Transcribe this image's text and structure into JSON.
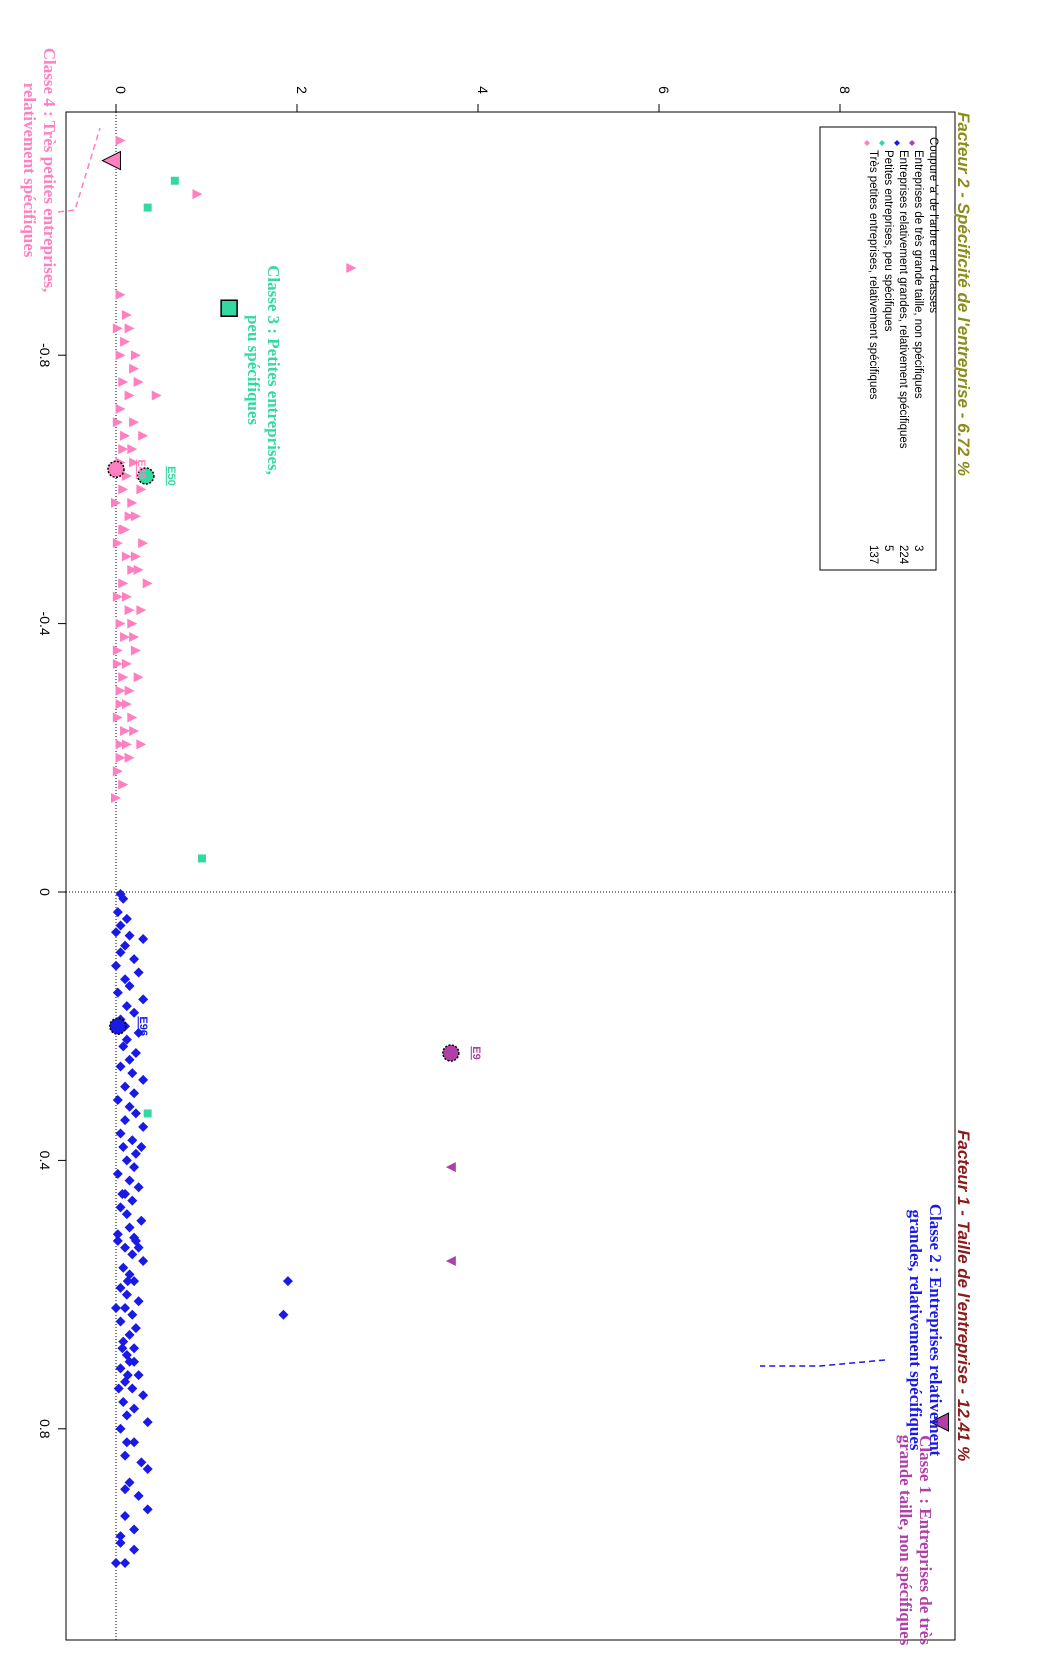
{
  "chart_data": {
    "type": "scatter",
    "rotation": "90deg clockwise",
    "xlabel": "Facteur 1 - Taille de l'entreprise  -  12.41 %",
    "ylabel": "Facteur 2 - Spécificité de l'entreprise  -  6.72 %",
    "xlim": [
      -1.12,
      1.02
    ],
    "ylim": [
      -0.3,
      9.0
    ],
    "x_ticks": [
      -0.8,
      -0.4,
      0,
      0.4,
      0.8
    ],
    "x_tick_labels": [
      "-0.8",
      "-0.4",
      "0",
      "0.4",
      "0.8"
    ],
    "y_ticks": [
      0,
      2,
      4,
      6,
      8
    ],
    "y_tick_labels": [
      "0",
      "2",
      "4",
      "6",
      "8"
    ],
    "reference_lines": {
      "x": 0,
      "y": 0
    },
    "colors": {
      "class1": "#b040a8",
      "class2": "#1a1ae6",
      "class3": "#33d9a0",
      "class4": "#ff80c0",
      "xlabel": "#8b1a1a",
      "ylabel": "#8c8c1a"
    },
    "legend": {
      "title": "Coupure 'a' de l'arbre en 4 classes",
      "items": [
        {
          "label": "Entreprises de très grande taille, non spécifiques",
          "count": "3"
        },
        {
          "label": "Entreprises relativement grandes, relativement spécifiques",
          "count": "224"
        },
        {
          "label": "Petites entreprises, peu spécifiques",
          "count": "5"
        },
        {
          "label": "Très petites entreprises, relativement spécifiques",
          "count": "137"
        }
      ]
    },
    "class_labels": {
      "class1": [
        "Classe 1 : Entreprises de très",
        "grande taille, non spécifiques"
      ],
      "class2": [
        "Classe 2 : Entreprises relativement",
        "grandes, relativement spécifiques"
      ],
      "class3": [
        "Classe 3 : Petites entreprises,",
        "peu spécifiques"
      ],
      "class4": [
        "Classe 4 : Très petites entreprises,",
        "relativement spécifiques"
      ]
    },
    "series": [
      {
        "name": "Entreprises de très grande taille, non spécifiques",
        "marker": "triangle",
        "points": [
          [
            0.41,
            3.7
          ],
          [
            0.55,
            3.7
          ],
          [
            0.79,
            9.1
          ]
        ]
      },
      {
        "name": "Entreprises relativement grandes, relativement spécifiques",
        "marker": "diamond",
        "points": [
          [
            0.003,
            0.05
          ],
          [
            0.01,
            0.08
          ],
          [
            0.03,
            0.02
          ],
          [
            0.04,
            0.12
          ],
          [
            0.05,
            0.05
          ],
          [
            0.06,
            0.0
          ],
          [
            0.065,
            0.15
          ],
          [
            0.07,
            0.3
          ],
          [
            0.08,
            0.1
          ],
          [
            0.09,
            0.05
          ],
          [
            0.1,
            0.2
          ],
          [
            0.11,
            0.0
          ],
          [
            0.12,
            0.25
          ],
          [
            0.13,
            0.1
          ],
          [
            0.14,
            0.15
          ],
          [
            0.15,
            0.02
          ],
          [
            0.16,
            0.3
          ],
          [
            0.17,
            0.12
          ],
          [
            0.18,
            0.2
          ],
          [
            0.19,
            0.05
          ],
          [
            0.2,
            0.1
          ],
          [
            0.21,
            0.25
          ],
          [
            0.22,
            0.12
          ],
          [
            0.23,
            0.08
          ],
          [
            0.24,
            0.22
          ],
          [
            0.25,
            0.15
          ],
          [
            0.26,
            0.05
          ],
          [
            0.27,
            0.18
          ],
          [
            0.28,
            0.3
          ],
          [
            0.29,
            0.1
          ],
          [
            0.3,
            0.2
          ],
          [
            0.31,
            0.02
          ],
          [
            0.32,
            0.15
          ],
          [
            0.33,
            0.22
          ],
          [
            0.34,
            0.1
          ],
          [
            0.35,
            0.3
          ],
          [
            0.36,
            0.05
          ],
          [
            0.37,
            0.18
          ],
          [
            0.38,
            0.08
          ],
          [
            0.39,
            0.22
          ],
          [
            0.4,
            0.12
          ],
          [
            0.41,
            0.2
          ],
          [
            0.42,
            0.02
          ],
          [
            0.43,
            0.15
          ],
          [
            0.44,
            0.25
          ],
          [
            0.45,
            0.1
          ],
          [
            0.46,
            0.18
          ],
          [
            0.47,
            0.05
          ],
          [
            0.48,
            0.12
          ],
          [
            0.49,
            0.28
          ],
          [
            0.5,
            0.15
          ],
          [
            0.51,
            0.02
          ],
          [
            0.52,
            0.22
          ],
          [
            0.53,
            0.1
          ],
          [
            0.54,
            0.18
          ],
          [
            0.55,
            0.3
          ],
          [
            0.56,
            0.08
          ],
          [
            0.57,
            0.15
          ],
          [
            0.58,
            0.2
          ],
          [
            0.59,
            0.05
          ],
          [
            0.6,
            0.12
          ],
          [
            0.61,
            0.25
          ],
          [
            0.62,
            0.1
          ],
          [
            0.63,
            0.18
          ],
          [
            0.64,
            0.05
          ],
          [
            0.65,
            0.22
          ],
          [
            0.66,
            0.15
          ],
          [
            0.67,
            0.08
          ],
          [
            0.68,
            0.2
          ],
          [
            0.69,
            0.12
          ],
          [
            0.7,
            0.15
          ],
          [
            0.71,
            0.05
          ],
          [
            0.72,
            0.25
          ],
          [
            0.73,
            0.1
          ],
          [
            0.74,
            0.18
          ],
          [
            0.75,
            0.3
          ],
          [
            0.76,
            0.08
          ],
          [
            0.77,
            0.2
          ],
          [
            0.78,
            0.12
          ],
          [
            0.79,
            0.35
          ],
          [
            0.8,
            0.05
          ],
          [
            0.82,
            0.2
          ],
          [
            0.84,
            0.1
          ],
          [
            0.86,
            0.35
          ],
          [
            0.88,
            0.15
          ],
          [
            0.9,
            0.25
          ],
          [
            0.93,
            0.1
          ],
          [
            0.95,
            0.2
          ],
          [
            0.97,
            0.05
          ],
          [
            1.0,
            0.0
          ],
          [
            0.45,
            0.07
          ],
          [
            0.58,
            0.13
          ],
          [
            0.68,
            0.07
          ],
          [
            0.72,
            0.13
          ],
          [
            0.85,
            0.28
          ],
          [
            0.92,
            0.35
          ],
          [
            0.38,
            0.28
          ],
          [
            0.52,
            0.02
          ],
          [
            0.62,
            0.0
          ],
          [
            0.74,
            0.03
          ],
          [
            0.515,
            0.2
          ],
          [
            0.53,
            0.25
          ],
          [
            0.58,
            1.9
          ],
          [
            0.63,
            1.85
          ],
          [
            0.7,
            0.2
          ],
          [
            0.96,
            0.05
          ],
          [
            0.82,
            0.12
          ],
          [
            0.89,
            0.1
          ],
          [
            0.98,
            0.2
          ],
          [
            1.0,
            0.1
          ]
        ]
      },
      {
        "name": "Petites entreprises, peu spécifiques",
        "marker": "square",
        "points": [
          [
            -1.06,
            0.65
          ],
          [
            -1.02,
            0.35
          ],
          [
            -0.05,
            0.95
          ],
          [
            0.33,
            0.35
          ],
          [
            -0.87,
            1.25
          ]
        ]
      },
      {
        "name": "Très petites entreprises, relativement spécifiques",
        "marker": "triangle-down",
        "points": [
          [
            -1.04,
            0.9
          ],
          [
            -0.93,
            2.6
          ],
          [
            -0.89,
            0.05
          ],
          [
            -0.86,
            0.12
          ],
          [
            -0.84,
            0.02
          ],
          [
            -0.82,
            0.1
          ],
          [
            -0.8,
            0.05
          ],
          [
            -0.78,
            0.2
          ],
          [
            -0.76,
            0.08
          ],
          [
            -0.74,
            0.15
          ],
          [
            -0.72,
            0.05
          ],
          [
            -0.7,
            0.02
          ],
          [
            -0.68,
            0.1
          ],
          [
            -0.66,
            0.18
          ],
          [
            -0.64,
            0.05
          ],
          [
            -0.62,
            0.12
          ],
          [
            -0.6,
            0.08
          ],
          [
            -0.58,
            0.0
          ],
          [
            -0.56,
            0.15
          ],
          [
            -0.54,
            0.1
          ],
          [
            -0.52,
            0.02
          ],
          [
            -0.5,
            0.12
          ],
          [
            -0.48,
            0.25
          ],
          [
            -0.46,
            0.08
          ],
          [
            -0.44,
            0.02
          ],
          [
            -0.42,
            0.15
          ],
          [
            -0.4,
            0.05
          ],
          [
            -0.38,
            0.1
          ],
          [
            -0.36,
            0.02
          ],
          [
            -0.34,
            0.12
          ],
          [
            -0.32,
            0.08
          ],
          [
            -0.3,
            0.15
          ],
          [
            -0.28,
            0.05
          ],
          [
            -0.26,
            0.02
          ],
          [
            -0.24,
            0.1
          ],
          [
            -0.22,
            0.12
          ],
          [
            -0.2,
            0.05
          ],
          [
            -0.18,
            0.02
          ],
          [
            -0.16,
            0.08
          ],
          [
            -0.14,
            0.0
          ],
          [
            -0.74,
            0.45
          ],
          [
            -0.6,
            0.28
          ],
          [
            -0.52,
            0.3
          ],
          [
            -0.46,
            0.35
          ],
          [
            -0.38,
            0.2
          ],
          [
            -0.32,
            0.25
          ],
          [
            -0.26,
            0.18
          ],
          [
            -0.68,
            0.3
          ],
          [
            -0.7,
            0.2
          ],
          [
            -0.62,
            0.38
          ],
          [
            -0.56,
            0.22
          ],
          [
            -0.48,
            0.18
          ],
          [
            -0.42,
            0.28
          ],
          [
            -0.36,
            0.22
          ],
          [
            -0.3,
            0.05
          ],
          [
            -0.24,
            0.2
          ],
          [
            -0.22,
            0.28
          ],
          [
            -0.2,
            0.15
          ],
          [
            -0.76,
            0.25
          ],
          [
            -0.66,
            0.08
          ],
          [
            -0.58,
            0.18
          ],
          [
            -0.54,
            0.08
          ],
          [
            -0.5,
            0.22
          ],
          [
            -0.44,
            0.12
          ],
          [
            -0.4,
            0.18
          ],
          [
            -0.34,
            0.02
          ],
          [
            -0.28,
            0.12
          ],
          [
            -0.22,
            0.05
          ],
          [
            -0.8,
            0.22
          ],
          [
            -0.84,
            0.15
          ],
          [
            -0.64,
            0.2
          ],
          [
            -1.12,
            0.05
          ]
        ]
      }
    ],
    "highlighted_points": [
      {
        "label": "E9",
        "series": "class1",
        "x": 0.24,
        "y": 3.7
      },
      {
        "label": "E96",
        "series": "class2",
        "x": 0.2,
        "y": 0.02
      },
      {
        "label": "E50",
        "series": "class3",
        "x": -0.62,
        "y": 0.33
      },
      {
        "label": "E49",
        "series": "class4",
        "x": -0.63,
        "y": 0.0
      }
    ]
  }
}
